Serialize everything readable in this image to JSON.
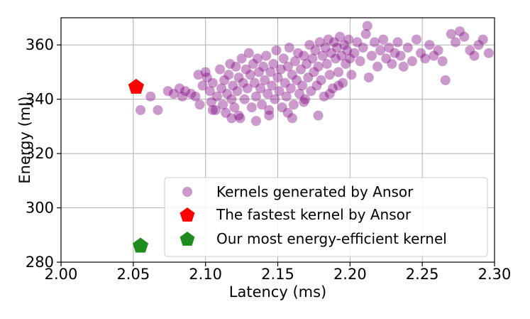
{
  "chart_data": {
    "type": "scatter",
    "xlabel": "Latency (ms)",
    "ylabel": "Energy (mJ)",
    "xlim": [
      2.0,
      2.3
    ],
    "ylim": [
      280,
      370
    ],
    "xticks": [
      2.0,
      2.05,
      2.1,
      2.15,
      2.2,
      2.25,
      2.3
    ],
    "xtick_labels": [
      "2.00",
      "2.05",
      "2.10",
      "2.15",
      "2.20",
      "2.25",
      "2.30"
    ],
    "yticks": [
      280,
      300,
      320,
      340,
      360
    ],
    "ytick_labels": [
      "280",
      "300",
      "320",
      "340",
      "360"
    ],
    "grid": true,
    "legend_position": "lower-right",
    "series": [
      {
        "name": "Kernels generated by Ansor",
        "marker": "circle",
        "color": "#800080",
        "alpha": 0.4,
        "points": [
          [
            2.055,
            336
          ],
          [
            2.062,
            341
          ],
          [
            2.067,
            336
          ],
          [
            2.074,
            343
          ],
          [
            2.078,
            342
          ],
          [
            2.082,
            344
          ],
          [
            2.084,
            341
          ],
          [
            2.086,
            343
          ],
          [
            2.09,
            342
          ],
          [
            2.093,
            341
          ],
          [
            2.095,
            349
          ],
          [
            2.096,
            338
          ],
          [
            2.098,
            345
          ],
          [
            2.1,
            350
          ],
          [
            2.101,
            348
          ],
          [
            2.103,
            343
          ],
          [
            2.104,
            339
          ],
          [
            2.105,
            346
          ],
          [
            2.107,
            336
          ],
          [
            2.108,
            341
          ],
          [
            2.11,
            351
          ],
          [
            2.111,
            344
          ],
          [
            2.112,
            338
          ],
          [
            2.113,
            347
          ],
          [
            2.114,
            335
          ],
          [
            2.115,
            342
          ],
          [
            2.116,
            349
          ],
          [
            2.117,
            353
          ],
          [
            2.118,
            340
          ],
          [
            2.119,
            345
          ],
          [
            2.12,
            337
          ],
          [
            2.121,
            352
          ],
          [
            2.122,
            343
          ],
          [
            2.123,
            348
          ],
          [
            2.124,
            333
          ],
          [
            2.125,
            355
          ],
          [
            2.126,
            346
          ],
          [
            2.127,
            340
          ],
          [
            2.128,
            351
          ],
          [
            2.129,
            344
          ],
          [
            2.13,
            357
          ],
          [
            2.131,
            349
          ],
          [
            2.132,
            337
          ],
          [
            2.133,
            353
          ],
          [
            2.134,
            346
          ],
          [
            2.135,
            341
          ],
          [
            2.136,
            355
          ],
          [
            2.137,
            350
          ],
          [
            2.138,
            344
          ],
          [
            2.139,
            338
          ],
          [
            2.14,
            352
          ],
          [
            2.141,
            347
          ],
          [
            2.142,
            356
          ],
          [
            2.143,
            342
          ],
          [
            2.144,
            336
          ],
          [
            2.145,
            350
          ],
          [
            2.146,
            345
          ],
          [
            2.147,
            353
          ],
          [
            2.148,
            340
          ],
          [
            2.149,
            358
          ],
          [
            2.15,
            348
          ],
          [
            2.151,
            343
          ],
          [
            2.152,
            351
          ],
          [
            2.153,
            337
          ],
          [
            2.154,
            355
          ],
          [
            2.155,
            346
          ],
          [
            2.156,
            341
          ],
          [
            2.157,
            352
          ],
          [
            2.158,
            359
          ],
          [
            2.159,
            344
          ],
          [
            2.16,
            349
          ],
          [
            2.161,
            338
          ],
          [
            2.162,
            354
          ],
          [
            2.163,
            347
          ],
          [
            2.164,
            357
          ],
          [
            2.165,
            342
          ],
          [
            2.166,
            351
          ],
          [
            2.167,
            345
          ],
          [
            2.168,
            356
          ],
          [
            2.169,
            340
          ],
          [
            2.17,
            353
          ],
          [
            2.171,
            348
          ],
          [
            2.172,
            360
          ],
          [
            2.173,
            343
          ],
          [
            2.174,
            355
          ],
          [
            2.175,
            350
          ],
          [
            2.176,
            358
          ],
          [
            2.177,
            345
          ],
          [
            2.178,
            352
          ],
          [
            2.179,
            361
          ],
          [
            2.18,
            347
          ],
          [
            2.181,
            356
          ],
          [
            2.182,
            341
          ],
          [
            2.183,
            359
          ],
          [
            2.184,
            353
          ],
          [
            2.185,
            362
          ],
          [
            2.186,
            349
          ],
          [
            2.187,
            357
          ],
          [
            2.188,
            344
          ],
          [
            2.189,
            361
          ],
          [
            2.19,
            355
          ],
          [
            2.191,
            359
          ],
          [
            2.192,
            350
          ],
          [
            2.193,
            363
          ],
          [
            2.194,
            356
          ],
          [
            2.195,
            346
          ],
          [
            2.196,
            360
          ],
          [
            2.197,
            353
          ],
          [
            2.198,
            358
          ],
          [
            2.199,
            362
          ],
          [
            2.2,
            355
          ],
          [
            2.201,
            349
          ],
          [
            2.203,
            357
          ],
          [
            2.205,
            361
          ],
          [
            2.207,
            354
          ],
          [
            2.209,
            359
          ],
          [
            2.211,
            364
          ],
          [
            2.213,
            348
          ],
          [
            2.215,
            356
          ],
          [
            2.217,
            361
          ],
          [
            2.219,
            352
          ],
          [
            2.221,
            358
          ],
          [
            2.223,
            362
          ],
          [
            2.225,
            355
          ],
          [
            2.227,
            359
          ],
          [
            2.229,
            353
          ],
          [
            2.231,
            357
          ],
          [
            2.233,
            361
          ],
          [
            2.235,
            356
          ],
          [
            2.237,
            352
          ],
          [
            2.24,
            359
          ],
          [
            2.243,
            354
          ],
          [
            2.246,
            362
          ],
          [
            2.249,
            357
          ],
          [
            2.252,
            355
          ],
          [
            2.255,
            360
          ],
          [
            2.258,
            356
          ],
          [
            2.261,
            358
          ],
          [
            2.264,
            354
          ],
          [
            2.266,
            347
          ],
          [
            2.27,
            364
          ],
          [
            2.273,
            361
          ],
          [
            2.276,
            365
          ],
          [
            2.279,
            363
          ],
          [
            2.283,
            358
          ],
          [
            2.286,
            356
          ],
          [
            2.289,
            360
          ],
          [
            2.292,
            362
          ],
          [
            2.296,
            357
          ],
          [
            2.212,
            367
          ],
          [
            2.105,
            336
          ],
          [
            2.118,
            333
          ],
          [
            2.16,
            333
          ],
          [
            2.178,
            334
          ],
          [
            2.135,
            332
          ],
          [
            2.144,
            334
          ],
          [
            2.123,
            334
          ],
          [
            2.157,
            335
          ],
          [
            2.168,
            339
          ],
          [
            2.186,
            342
          ],
          [
            2.192,
            345
          ]
        ]
      },
      {
        "name": "The fastest kernel by Ansor",
        "marker": "pentagon",
        "color": "#ff0000",
        "points": [
          [
            2.052,
            344.5
          ]
        ]
      },
      {
        "name": "Our most energy-efficient kernel",
        "marker": "pentagon",
        "color": "#1e8c1e",
        "points": [
          [
            2.055,
            286
          ]
        ]
      }
    ]
  }
}
